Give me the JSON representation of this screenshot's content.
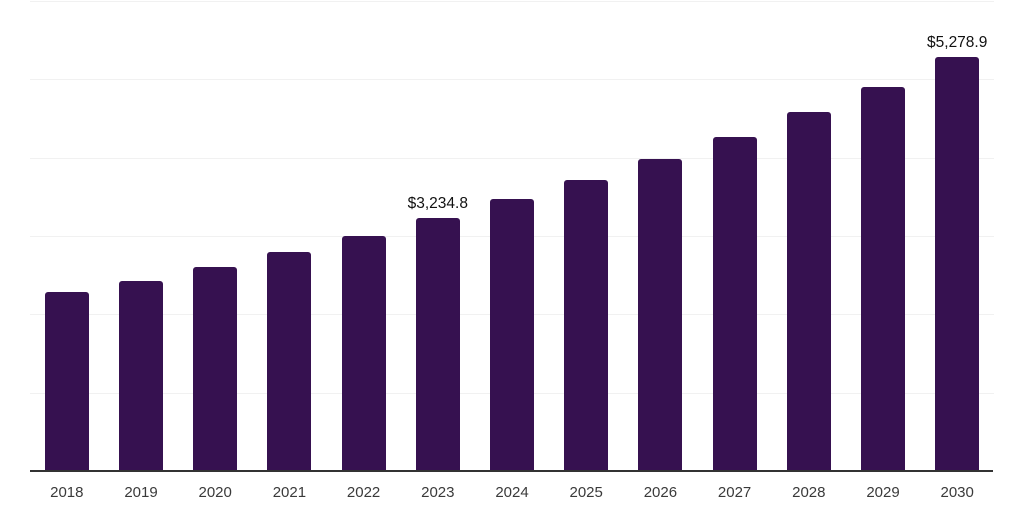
{
  "page": {
    "background": "#ffffff"
  },
  "chart_data": {
    "type": "bar",
    "title": "",
    "xlabel": "",
    "ylabel": "",
    "categories": [
      "2018",
      "2019",
      "2020",
      "2021",
      "2022",
      "2023",
      "2024",
      "2025",
      "2026",
      "2027",
      "2028",
      "2029",
      "2030"
    ],
    "values": [
      2285,
      2425,
      2605,
      2800,
      3000,
      3234.8,
      3470,
      3710,
      3980,
      4265,
      4585,
      4900,
      5278.9
    ],
    "data_labels": [
      {
        "category": "2023",
        "text": "$3,234.8"
      },
      {
        "category": "2030",
        "text": "$5,278.9"
      }
    ],
    "ylim": [
      0,
      6000
    ],
    "gridline_interval": 1000,
    "grid": true,
    "legend_position": "none",
    "y_axis_tick_labels_visible": false,
    "colors": {
      "bar": "#361150",
      "gridline": "#f1f1f1",
      "axis_line": "#333333",
      "tick_label": "#3a3a3a",
      "data_label": "#111111"
    }
  }
}
